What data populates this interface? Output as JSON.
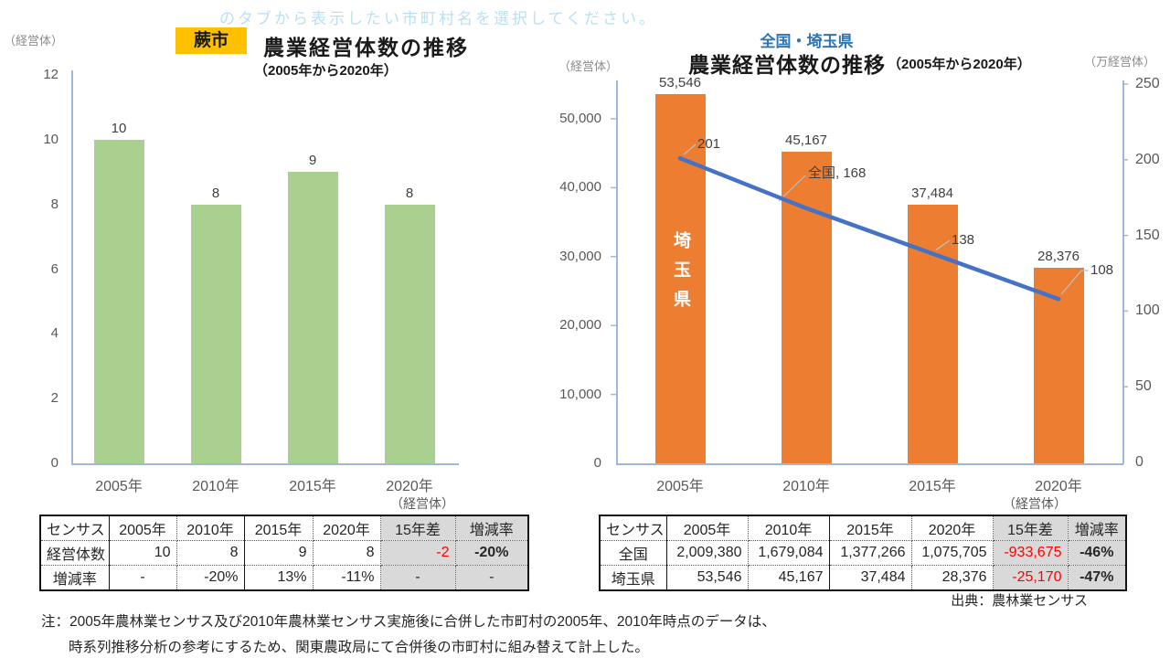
{
  "watermark": "のタブから表示したい市町村名を選択してください。",
  "colors": {
    "warabi_bar": "#A9D08E",
    "saitama_bar": "#ED7D31",
    "national_line": "#4472C4",
    "badge_bg": "#FFC000",
    "right_header_blue": "#2E75B6",
    "axis_line": "#A0B6DD",
    "negative_red": "#FF0000",
    "table_gray_bg": "#D9D9D9"
  },
  "left_panel": {
    "badge": "蕨市",
    "title": "農業経営体数の推移",
    "subtitle": "（2005年から2020年）",
    "axis_unit": "（経営体）",
    "table_unit": "（経営体）",
    "table": {
      "header": [
        "センサス",
        "2005年",
        "2010年",
        "2015年",
        "2020年",
        "15年差",
        "増減率"
      ],
      "rows": [
        {
          "label": "経営体数",
          "cells": [
            "10",
            "8",
            "9",
            "8",
            "-2",
            "-20%"
          ]
        },
        {
          "label": "増減率",
          "cells": [
            "-",
            "-20%",
            "13%",
            "-11%",
            "-",
            "-"
          ]
        }
      ]
    }
  },
  "right_panel": {
    "header": "全国・埼玉県",
    "title": "農業経営体数の推移",
    "title_paren": "（2005年から2020年）",
    "left_axis_unit": "（経営体）",
    "right_axis_unit": "（万経営体）",
    "table_unit": "（経営体）",
    "source": "出典：農林業センサス",
    "table": {
      "header": [
        "センサス",
        "2005年",
        "2010年",
        "2015年",
        "2020年",
        "15年差",
        "増減率"
      ],
      "rows": [
        {
          "label": "全国",
          "cells": [
            "2,009,380",
            "1,679,084",
            "1,377,266",
            "1,075,705",
            "-933,675",
            "-46%"
          ]
        },
        {
          "label": "埼玉県",
          "cells": [
            "53,546",
            "45,167",
            "37,484",
            "28,376",
            "-25,170",
            "-47%"
          ]
        }
      ]
    }
  },
  "notes": {
    "line1": "注：2005年農林業センサス及び2010年農林業センサス実施後に合併した市町村の2005年、2010年時点のデータは、",
    "line2": "時系列推移分析の参考にするため、関東農政局にて合併後の市町村に組み替えて計上した。"
  },
  "chart_data": [
    {
      "type": "bar",
      "title": "農業経営体数の推移",
      "subtitle": "（2005年から2020年）",
      "region": "蕨市",
      "unit": "経営体",
      "categories": [
        "2005年",
        "2010年",
        "2015年",
        "2020年"
      ],
      "values": [
        10,
        8,
        9,
        8
      ],
      "ylim": [
        0,
        12
      ],
      "ytick_labels": [
        "0",
        "2",
        "4",
        "6",
        "8",
        "10",
        "12"
      ],
      "bar_color": "#A9D08E",
      "grid": false,
      "legend": "none"
    },
    {
      "type": "bar+line",
      "title": "農業経営体数の推移",
      "subtitle": "（2005年から2020年）",
      "region": "全国・埼玉県",
      "categories": [
        "2005年",
        "2010年",
        "2015年",
        "2020年"
      ],
      "series": [
        {
          "name": "埼玉県",
          "type": "bar",
          "axis": "left",
          "values": [
            53546,
            45167,
            37484,
            28376
          ],
          "labels": [
            "53,546",
            "45,167",
            "37,484",
            "28,376"
          ],
          "color": "#ED7D31"
        },
        {
          "name": "全国",
          "type": "line",
          "axis": "right",
          "values": [
            201,
            168,
            138,
            108
          ],
          "labels": [
            "201",
            "全国, 168",
            "138",
            "108"
          ],
          "color": "#4472C4"
        }
      ],
      "left_axis": {
        "unit": "経営体",
        "lim": [
          0,
          55000
        ],
        "tick_labels": [
          "0",
          "10,000",
          "20,000",
          "30,000",
          "40,000",
          "50,000"
        ]
      },
      "right_axis": {
        "unit": "万経営体",
        "lim": [
          0,
          250
        ],
        "tick_labels": [
          "0",
          "50",
          "100",
          "150",
          "200",
          "250"
        ]
      },
      "grid": false,
      "legend": "none"
    }
  ]
}
